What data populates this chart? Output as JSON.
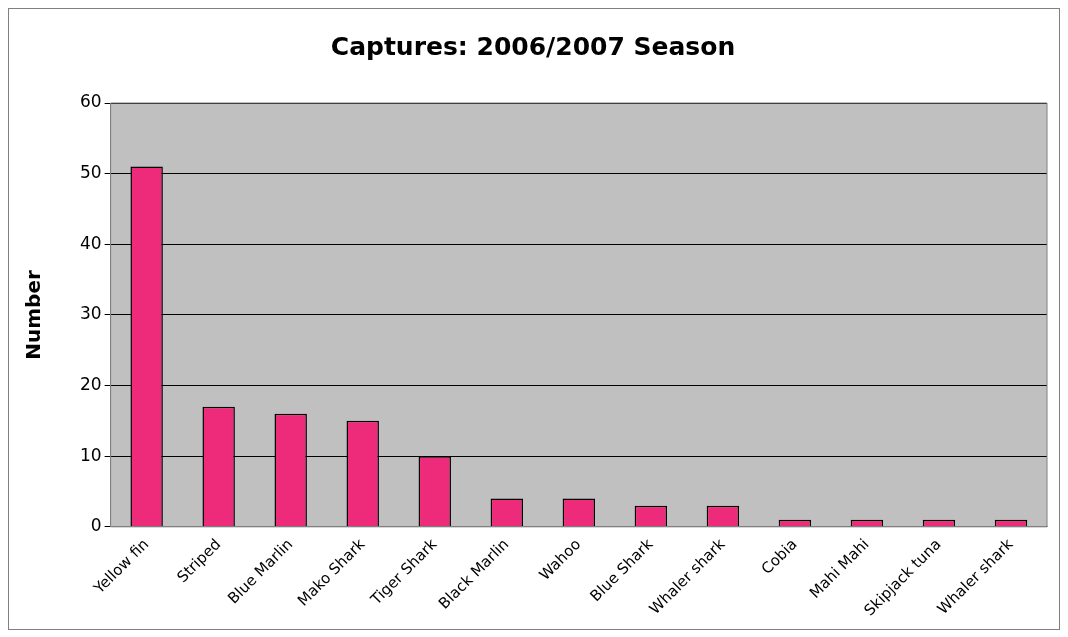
{
  "chart_data": {
    "type": "bar",
    "title": "Captures: 2006/2007 Season",
    "ylabel": "Number",
    "categories": [
      "Yellow fin",
      "Striped",
      "Blue Marlin",
      "Mako Shark",
      "Tiger Shark",
      "Black Marlin",
      "Wahoo",
      "Blue Shark",
      "Whaler shark",
      "Cobia",
      "Mahi Mahi",
      "Skipjack tuna",
      "Whaler shark"
    ],
    "values": [
      51,
      17,
      16,
      15,
      10,
      4,
      4,
      3,
      3,
      1,
      1,
      1,
      1
    ],
    "color": "#ee2a7b",
    "ylim": [
      0,
      60
    ],
    "yticks": [
      0,
      10,
      20,
      30,
      40,
      50,
      60
    ],
    "grid": "y"
  }
}
